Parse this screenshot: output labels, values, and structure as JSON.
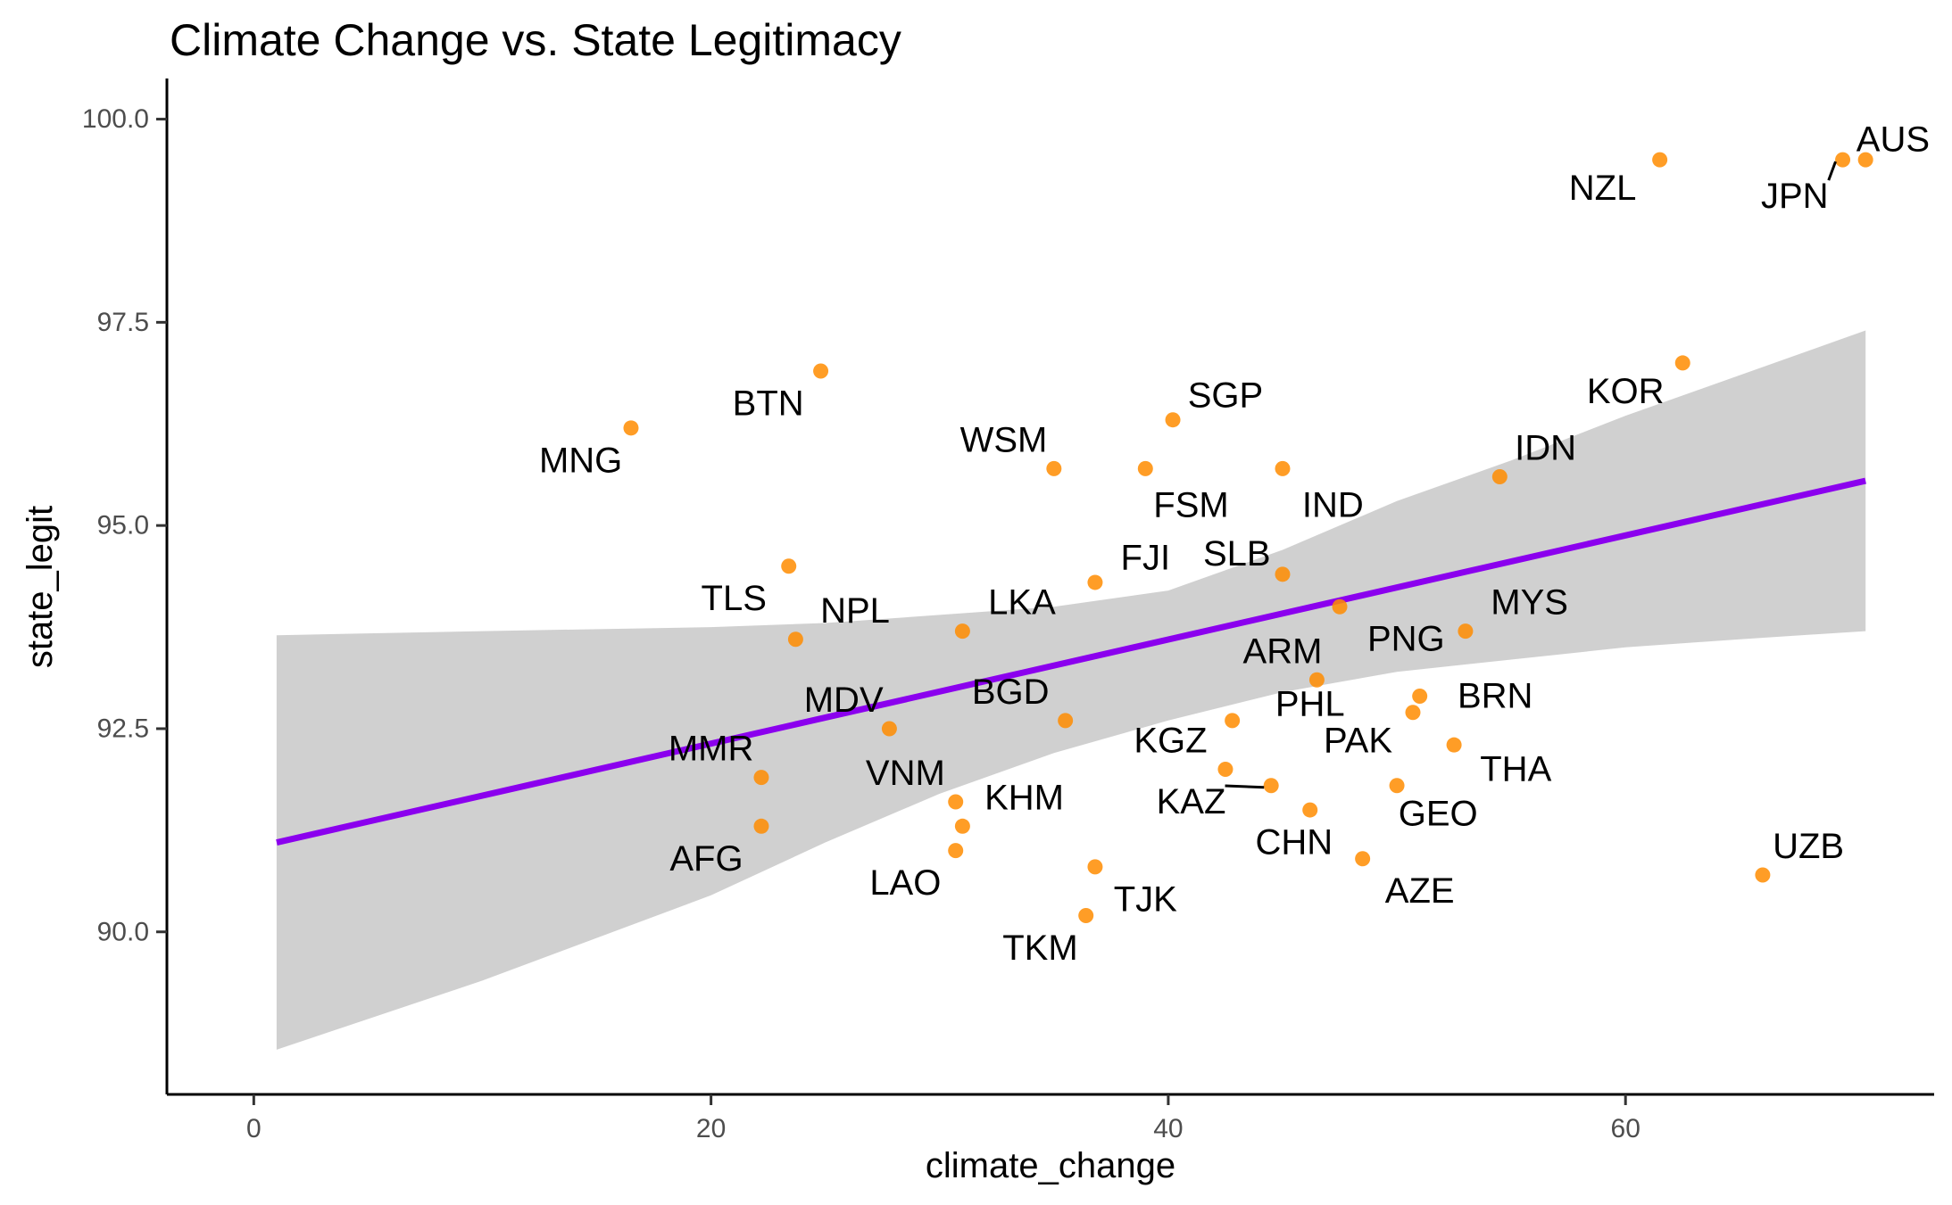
{
  "chart_data": {
    "type": "scatter",
    "title": "Climate Change vs. State Legitimacy",
    "xlabel": "climate_change",
    "ylabel": "state_legit",
    "xlim": [
      -3.8,
      73.5
    ],
    "ylim": [
      88.0,
      100.5
    ],
    "x_ticks": [
      0,
      20,
      40,
      60
    ],
    "x_tick_labels": [
      "0",
      "20",
      "40",
      "60"
    ],
    "y_ticks": [
      90.0,
      92.5,
      95.0,
      97.5,
      100.0
    ],
    "y_tick_labels": [
      "90.0",
      "92.5",
      "95.0",
      "97.5",
      "100.0"
    ],
    "grid": false,
    "point_color": "#FF8C00",
    "fit_line_color": "#8B00EE",
    "band_color": "#BEBEBE",
    "fit_line": {
      "x": [
        1.0,
        70.5
      ],
      "y": [
        91.1,
        95.55
      ]
    },
    "confidence_band": {
      "x": [
        1.0,
        10.0,
        20.0,
        25.0,
        30.0,
        35.0,
        40.0,
        45.0,
        50.0,
        55.0,
        60.0,
        65.0,
        70.5
      ],
      "upper": [
        93.65,
        93.7,
        93.75,
        93.8,
        93.9,
        94.0,
        94.2,
        94.7,
        95.3,
        95.8,
        96.35,
        96.85,
        97.4
      ],
      "lower": [
        88.55,
        89.4,
        90.45,
        91.1,
        91.7,
        92.2,
        92.6,
        92.95,
        93.2,
        93.35,
        93.5,
        93.6,
        93.7
      ]
    },
    "points": [
      {
        "label": "AUS",
        "x": 70.5,
        "y": 99.5,
        "lx": 71.7,
        "ly": 99.75
      },
      {
        "label": "JPN",
        "x": 69.5,
        "y": 99.5,
        "lx": 67.4,
        "ly": 99.05,
        "leader": true
      },
      {
        "label": "NZL",
        "x": 61.5,
        "y": 99.5,
        "lx": 59.0,
        "ly": 99.15
      },
      {
        "label": "KOR",
        "x": 62.5,
        "y": 97.0,
        "lx": 60.0,
        "ly": 96.65
      },
      {
        "label": "IDN",
        "x": 54.5,
        "y": 95.6,
        "lx": 56.5,
        "ly": 95.95
      },
      {
        "label": "MYS",
        "x": 53.0,
        "y": 93.7,
        "lx": 55.8,
        "ly": 94.05
      },
      {
        "label": "PNG",
        "x": 47.5,
        "y": 94.0,
        "lx": 50.4,
        "ly": 93.6
      },
      {
        "label": "BRN",
        "x": 51.0,
        "y": 92.9,
        "lx": 54.3,
        "ly": 92.9
      },
      {
        "label": "THA",
        "x": 52.5,
        "y": 92.3,
        "lx": 55.2,
        "ly": 92.0
      },
      {
        "label": "PAK",
        "x": 50.7,
        "y": 92.7,
        "lx": 48.3,
        "ly": 92.35
      },
      {
        "label": "GEO",
        "x": 50.0,
        "y": 91.8,
        "lx": 51.8,
        "ly": 91.45
      },
      {
        "label": "AZE",
        "x": 48.5,
        "y": 90.9,
        "lx": 51.0,
        "ly": 90.5
      },
      {
        "label": "CHN",
        "x": 46.2,
        "y": 91.5,
        "lx": 45.5,
        "ly": 91.1
      },
      {
        "label": "KAZ",
        "x": 44.5,
        "y": 91.8,
        "lx": 41.0,
        "ly": 91.6,
        "leader": true
      },
      {
        "label": "KGZ",
        "x": 42.5,
        "y": 92.0,
        "lx": 40.1,
        "ly": 92.35
      },
      {
        "label": "PHL",
        "x": 42.8,
        "y": 92.6,
        "lx": 46.2,
        "ly": 92.8
      },
      {
        "label": "ARM",
        "x": 46.5,
        "y": 93.1,
        "lx": 45.0,
        "ly": 93.45
      },
      {
        "label": "SLB",
        "x": 45.0,
        "y": 94.4,
        "lx": 43.0,
        "ly": 94.65
      },
      {
        "label": "IND",
        "x": 45.0,
        "y": 95.7,
        "lx": 47.2,
        "ly": 95.25
      },
      {
        "label": "FSM",
        "x": 39.0,
        "y": 95.7,
        "lx": 41.0,
        "ly": 95.25
      },
      {
        "label": "SGP",
        "x": 40.2,
        "y": 96.3,
        "lx": 42.5,
        "ly": 96.6
      },
      {
        "label": "FJI",
        "x": 36.8,
        "y": 94.3,
        "lx": 39.0,
        "ly": 94.6
      },
      {
        "label": "WSM",
        "x": 35.0,
        "y": 95.7,
        "lx": 32.8,
        "ly": 96.05
      },
      {
        "label": "LKA",
        "x": 31.0,
        "y": 93.7,
        "lx": 33.6,
        "ly": 94.05
      },
      {
        "label": "BGD",
        "x": 35.5,
        "y": 92.6,
        "lx": 33.1,
        "ly": 92.95
      },
      {
        "label": "KHM",
        "x": 31.0,
        "y": 91.3,
        "lx": 33.7,
        "ly": 91.65
      },
      {
        "label": "VNM",
        "x": 30.7,
        "y": 91.6,
        "lx": 28.5,
        "ly": 91.95
      },
      {
        "label": "LAO",
        "x": 30.7,
        "y": 91.0,
        "lx": 28.5,
        "ly": 90.6
      },
      {
        "label": "TJK",
        "x": 36.8,
        "y": 90.8,
        "lx": 39.0,
        "ly": 90.4
      },
      {
        "label": "TKM",
        "x": 36.4,
        "y": 90.2,
        "lx": 34.4,
        "ly": 89.8
      },
      {
        "label": "MDV",
        "x": 27.8,
        "y": 92.5,
        "lx": 25.8,
        "ly": 92.85
      },
      {
        "label": "NPL",
        "x": 23.7,
        "y": 93.6,
        "lx": 26.3,
        "ly": 93.95
      },
      {
        "label": "TLS",
        "x": 23.4,
        "y": 94.5,
        "lx": 21.0,
        "ly": 94.1
      },
      {
        "label": "MMR",
        "x": 22.2,
        "y": 91.9,
        "lx": 20.0,
        "ly": 92.25
      },
      {
        "label": "AFG",
        "x": 22.2,
        "y": 91.3,
        "lx": 19.8,
        "ly": 90.9
      },
      {
        "label": "BTN",
        "x": 24.8,
        "y": 96.9,
        "lx": 22.5,
        "ly": 96.5
      },
      {
        "label": "MNG",
        "x": 16.5,
        "y": 96.2,
        "lx": 14.3,
        "ly": 95.8
      },
      {
        "label": "UZB",
        "x": 66.0,
        "y": 90.7,
        "lx": 68.0,
        "ly": 91.05
      }
    ]
  }
}
